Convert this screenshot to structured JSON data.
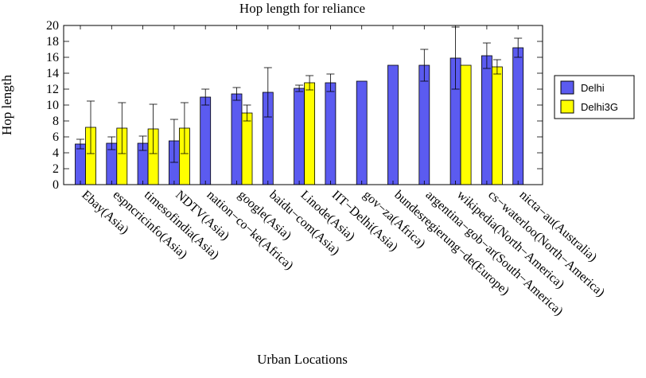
{
  "chart_data": {
    "type": "bar",
    "title": "Hop length for reliance",
    "xlabel": "Urban Locations",
    "ylabel": "Hop length",
    "ylim": [
      0,
      20
    ],
    "yticks": [
      0,
      2,
      4,
      6,
      8,
      10,
      12,
      14,
      16,
      18,
      20
    ],
    "grid": false,
    "legend_position": "right",
    "categories": [
      "Ebay(Asia)",
      "espncricinfo(Asia)",
      "timesofindia(Asia)",
      "NDTV(Asia)",
      "nation−co−ke(Africa)",
      "google(Asia)",
      "baidu−com(Asia)",
      "Linode(Asia)",
      "IIT−Delhi(Asia)",
      "gov−za(Africa)",
      "bundesregierung−de(Europe)",
      "argentina−gob−ar(South−America)",
      "wikipedia(North−America)",
      "cs−waterloo(North−America)",
      "nicta−au(Australia)"
    ],
    "series": [
      {
        "name": "Delhi",
        "color": "#5b5bf0",
        "values": [
          5.1,
          5.2,
          5.2,
          5.5,
          11.0,
          11.4,
          11.6,
          12.1,
          12.8,
          13.0,
          15.0,
          15.0,
          15.9,
          16.2,
          17.2
        ],
        "error": [
          0.6,
          0.8,
          0.9,
          2.7,
          1.0,
          0.8,
          3.1,
          0.4,
          1.1,
          0,
          0,
          2.0,
          3.9,
          1.6,
          1.2
        ]
      },
      {
        "name": "Delhi3G",
        "color": "#ffff00",
        "values": [
          7.2,
          7.1,
          7.0,
          7.1,
          null,
          9.0,
          null,
          12.8,
          null,
          null,
          null,
          null,
          15.0,
          14.8,
          null
        ],
        "error": [
          3.3,
          3.2,
          3.1,
          3.2,
          null,
          1.0,
          null,
          0.9,
          null,
          null,
          null,
          null,
          0,
          0.9,
          null
        ]
      }
    ]
  }
}
